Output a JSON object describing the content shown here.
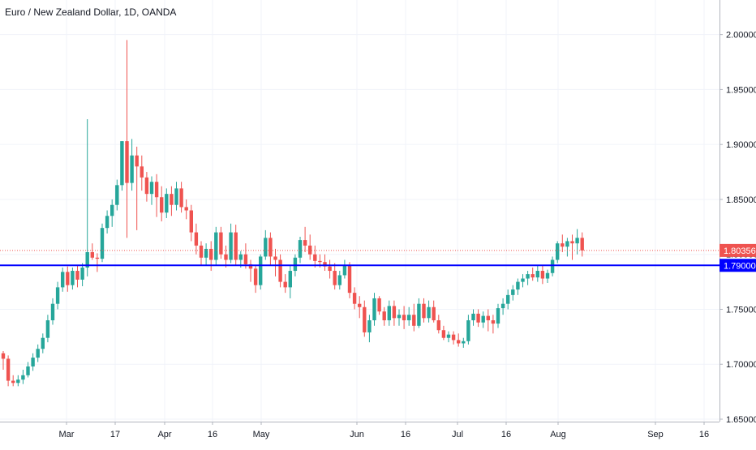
{
  "chart_data": {
    "type": "candlestick",
    "title": "Euro / New Zealand Dollar, 1D, OANDA",
    "x_tick_labels": [
      "Mar",
      "17",
      "Apr",
      "16",
      "May",
      "Jun",
      "16",
      "Jul",
      "16",
      "Aug",
      "Sep",
      "16"
    ],
    "y_tick_labels": [
      "2.00000",
      "1.95000",
      "1.90000",
      "1.85000",
      "1.80000",
      "1.75000",
      "1.70000",
      "1.65000"
    ],
    "y_ticks": [
      2.0,
      1.95,
      1.9,
      1.85,
      1.8,
      1.75,
      1.7,
      1.65
    ],
    "ylim": [
      1.65,
      2.03
    ],
    "grid": true,
    "current_price_label": "1.80356",
    "current_price": 1.80356,
    "horizontal_level_label": "1.79000",
    "horizontal_level": 1.79,
    "colors": {
      "up": "#26a69a",
      "down": "#ef5350",
      "level": "#0000ff",
      "grid": "#f0f3fa",
      "axis_text": "#131722"
    },
    "candles": [
      [
        1.71,
        1.712,
        1.695,
        1.705
      ],
      [
        1.705,
        1.708,
        1.68,
        1.685
      ],
      [
        1.685,
        1.69,
        1.68,
        1.683
      ],
      [
        1.683,
        1.69,
        1.68,
        1.686
      ],
      [
        1.686,
        1.695,
        1.682,
        1.69
      ],
      [
        1.69,
        1.702,
        1.688,
        1.698
      ],
      [
        1.698,
        1.71,
        1.694,
        1.706
      ],
      [
        1.706,
        1.718,
        1.702,
        1.714
      ],
      [
        1.714,
        1.728,
        1.71,
        1.724
      ],
      [
        1.724,
        1.745,
        1.72,
        1.74
      ],
      [
        1.74,
        1.76,
        1.736,
        1.755
      ],
      [
        1.755,
        1.775,
        1.75,
        1.77
      ],
      [
        1.77,
        1.788,
        1.766,
        1.784
      ],
      [
        1.784,
        1.789,
        1.766,
        1.772
      ],
      [
        1.772,
        1.788,
        1.768,
        1.785
      ],
      [
        1.785,
        1.79,
        1.77,
        1.777
      ],
      [
        1.777,
        1.792,
        1.771,
        1.788
      ],
      [
        1.788,
        1.923,
        1.78,
        1.802
      ],
      [
        1.802,
        1.81,
        1.795,
        1.797
      ],
      [
        1.797,
        1.801,
        1.784,
        1.796
      ],
      [
        1.796,
        1.828,
        1.793,
        1.824
      ],
      [
        1.824,
        1.84,
        1.819,
        1.835
      ],
      [
        1.835,
        1.85,
        1.825,
        1.845
      ],
      [
        1.845,
        1.868,
        1.84,
        1.863
      ],
      [
        1.863,
        1.903,
        1.858,
        1.903
      ],
      [
        1.903,
        1.995,
        1.815,
        1.865
      ],
      [
        1.865,
        1.905,
        1.858,
        1.89
      ],
      [
        1.89,
        1.898,
        1.822,
        1.88
      ],
      [
        1.88,
        1.89,
        1.858,
        1.87
      ],
      [
        1.87,
        1.875,
        1.848,
        1.855
      ],
      [
        1.855,
        1.871,
        1.845,
        1.866
      ],
      [
        1.866,
        1.873,
        1.834,
        1.852
      ],
      [
        1.852,
        1.862,
        1.83,
        1.838
      ],
      [
        1.838,
        1.86,
        1.833,
        1.855
      ],
      [
        1.855,
        1.862,
        1.835,
        1.845
      ],
      [
        1.845,
        1.866,
        1.84,
        1.86
      ],
      [
        1.86,
        1.866,
        1.838,
        1.843
      ],
      [
        1.843,
        1.85,
        1.832,
        1.84
      ],
      [
        1.84,
        1.845,
        1.812,
        1.82
      ],
      [
        1.82,
        1.828,
        1.8,
        1.808
      ],
      [
        1.808,
        1.812,
        1.79,
        1.797
      ],
      [
        1.797,
        1.81,
        1.79,
        1.805
      ],
      [
        1.805,
        1.812,
        1.785,
        1.795
      ],
      [
        1.795,
        1.825,
        1.79,
        1.82
      ],
      [
        1.82,
        1.825,
        1.796,
        1.8
      ],
      [
        1.8,
        1.808,
        1.788,
        1.795
      ],
      [
        1.795,
        1.828,
        1.792,
        1.82
      ],
      [
        1.82,
        1.827,
        1.79,
        1.795
      ],
      [
        1.795,
        1.803,
        1.788,
        1.8
      ],
      [
        1.8,
        1.81,
        1.787,
        1.791
      ],
      [
        1.791,
        1.795,
        1.775,
        1.787
      ],
      [
        1.787,
        1.79,
        1.765,
        1.772
      ],
      [
        1.772,
        1.8,
        1.768,
        1.798
      ],
      [
        1.798,
        1.822,
        1.795,
        1.815
      ],
      [
        1.815,
        1.82,
        1.79,
        1.798
      ],
      [
        1.798,
        1.805,
        1.78,
        1.795
      ],
      [
        1.795,
        1.8,
        1.77,
        1.775
      ],
      [
        1.775,
        1.782,
        1.765,
        1.77
      ],
      [
        1.77,
        1.79,
        1.76,
        1.785
      ],
      [
        1.785,
        1.8,
        1.78,
        1.797
      ],
      [
        1.797,
        1.816,
        1.792,
        1.813
      ],
      [
        1.813,
        1.825,
        1.802,
        1.808
      ],
      [
        1.808,
        1.818,
        1.795,
        1.8
      ],
      [
        1.8,
        1.808,
        1.788,
        1.794
      ],
      [
        1.794,
        1.8,
        1.788,
        1.793
      ],
      [
        1.793,
        1.8,
        1.785,
        1.789
      ],
      [
        1.789,
        1.795,
        1.778,
        1.785
      ],
      [
        1.785,
        1.792,
        1.768,
        1.772
      ],
      [
        1.772,
        1.785,
        1.768,
        1.781
      ],
      [
        1.781,
        1.795,
        1.778,
        1.79
      ],
      [
        1.79,
        1.793,
        1.76,
        1.765
      ],
      [
        1.765,
        1.77,
        1.75,
        1.755
      ],
      [
        1.755,
        1.762,
        1.742,
        1.752
      ],
      [
        1.752,
        1.758,
        1.725,
        1.729
      ],
      [
        1.729,
        1.745,
        1.72,
        1.74
      ],
      [
        1.74,
        1.765,
        1.735,
        1.76
      ],
      [
        1.76,
        1.762,
        1.745,
        1.748
      ],
      [
        1.748,
        1.752,
        1.735,
        1.74
      ],
      [
        1.74,
        1.758,
        1.735,
        1.753
      ],
      [
        1.753,
        1.758,
        1.735,
        1.742
      ],
      [
        1.742,
        1.75,
        1.735,
        1.745
      ],
      [
        1.745,
        1.753,
        1.732,
        1.74
      ],
      [
        1.74,
        1.752,
        1.735,
        1.745
      ],
      [
        1.745,
        1.755,
        1.73,
        1.735
      ],
      [
        1.735,
        1.76,
        1.733,
        1.755
      ],
      [
        1.755,
        1.76,
        1.738,
        1.742
      ],
      [
        1.742,
        1.758,
        1.738,
        1.752
      ],
      [
        1.752,
        1.758,
        1.738,
        1.74
      ],
      [
        1.74,
        1.745,
        1.728,
        1.731
      ],
      [
        1.731,
        1.735,
        1.722,
        1.724
      ],
      [
        1.724,
        1.73,
        1.72,
        1.727
      ],
      [
        1.727,
        1.73,
        1.718,
        1.722
      ],
      [
        1.722,
        1.728,
        1.716,
        1.719
      ],
      [
        1.719,
        1.724,
        1.715,
        1.721
      ],
      [
        1.721,
        1.745,
        1.718,
        1.74
      ],
      [
        1.74,
        1.75,
        1.735,
        1.746
      ],
      [
        1.746,
        1.75,
        1.734,
        1.738
      ],
      [
        1.738,
        1.748,
        1.733,
        1.744
      ],
      [
        1.744,
        1.75,
        1.73,
        1.74
      ],
      [
        1.74,
        1.745,
        1.728,
        1.737
      ],
      [
        1.737,
        1.755,
        1.733,
        1.751
      ],
      [
        1.751,
        1.76,
        1.745,
        1.755
      ],
      [
        1.755,
        1.768,
        1.75,
        1.763
      ],
      [
        1.763,
        1.772,
        1.758,
        1.768
      ],
      [
        1.768,
        1.778,
        1.763,
        1.775
      ],
      [
        1.775,
        1.782,
        1.77,
        1.778
      ],
      [
        1.778,
        1.785,
        1.772,
        1.782
      ],
      [
        1.782,
        1.788,
        1.776,
        1.779
      ],
      [
        1.779,
        1.79,
        1.775,
        1.785
      ],
      [
        1.785,
        1.79,
        1.773,
        1.778
      ],
      [
        1.778,
        1.786,
        1.774,
        1.783
      ],
      [
        1.783,
        1.798,
        1.78,
        1.795
      ],
      [
        1.795,
        1.812,
        1.792,
        1.81
      ],
      [
        1.81,
        1.818,
        1.802,
        1.807
      ],
      [
        1.807,
        1.815,
        1.798,
        1.812
      ],
      [
        1.812,
        1.818,
        1.795,
        1.81
      ],
      [
        1.81,
        1.823,
        1.8,
        1.815
      ],
      [
        1.815,
        1.82,
        1.798,
        1.80356
      ]
    ]
  }
}
